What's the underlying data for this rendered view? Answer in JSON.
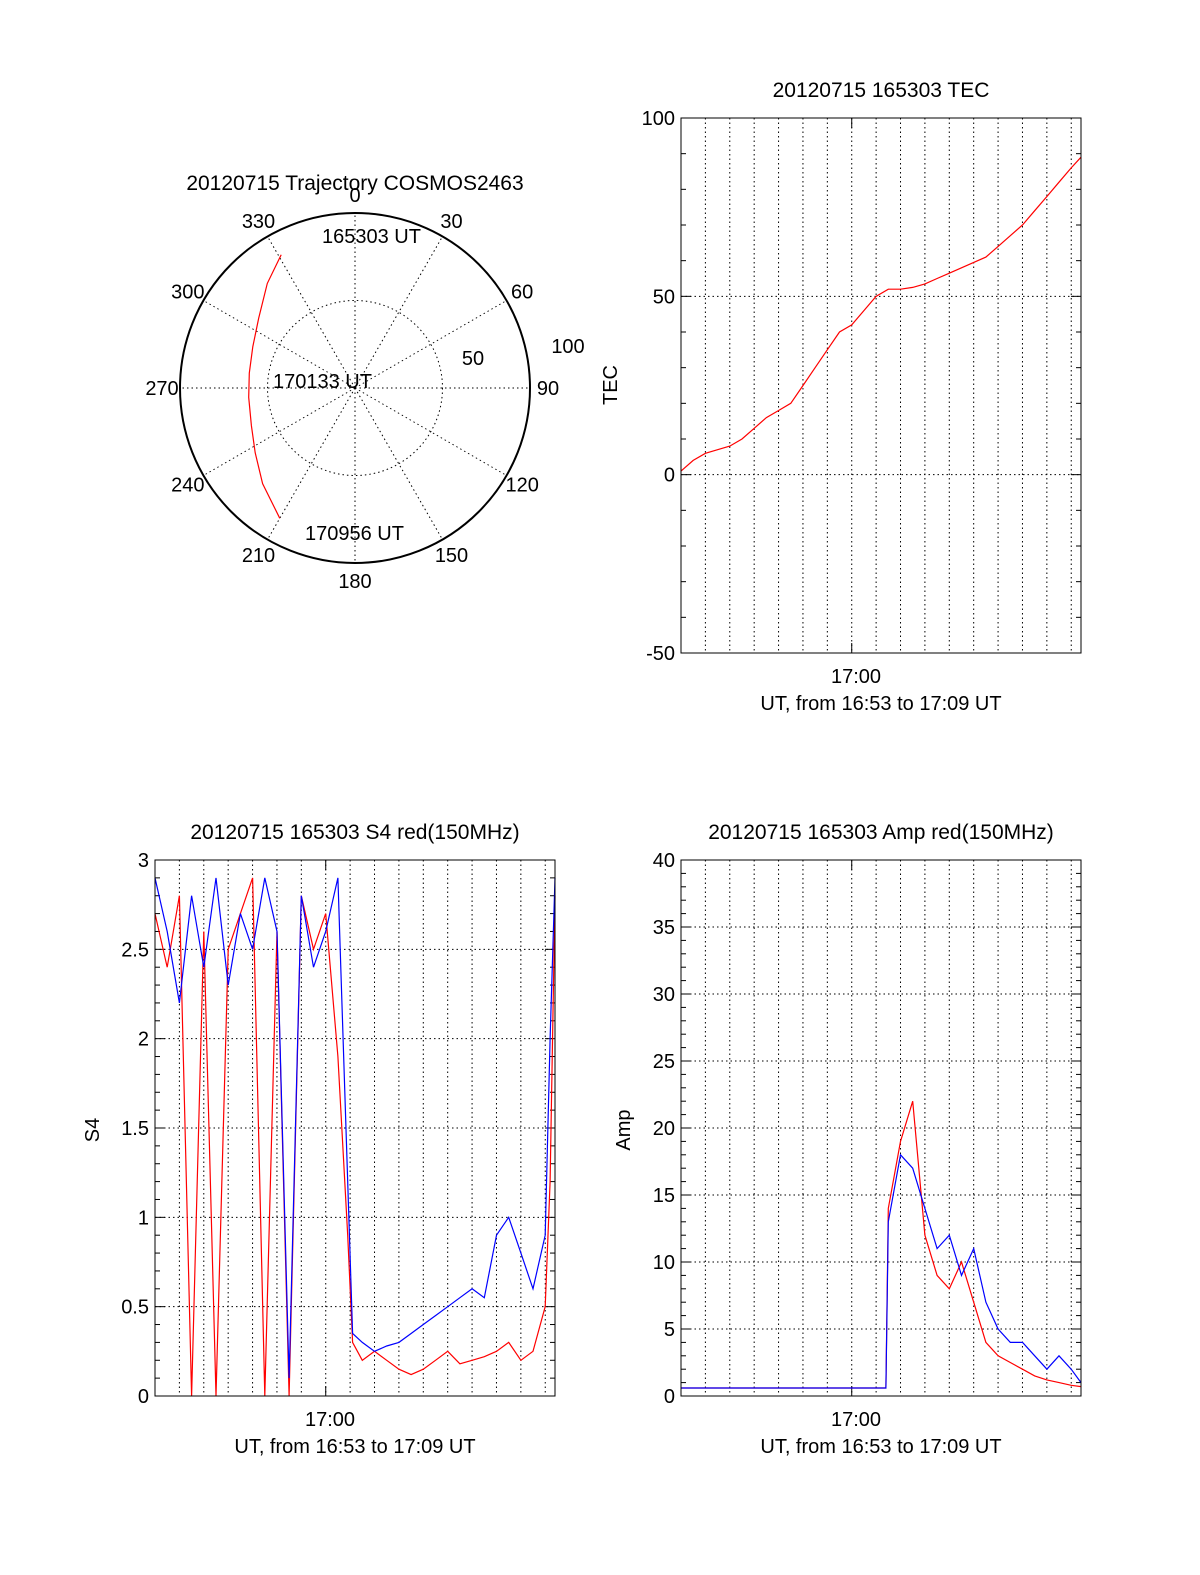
{
  "chart_data": [
    {
      "type": "polar",
      "title": "20120715 Trajectory COSMOS2463",
      "angle_labels": [
        "0",
        "30",
        "60",
        "90",
        "120",
        "150",
        "180",
        "210",
        "240",
        "270",
        "300",
        "330"
      ],
      "radius_labels": [
        "50",
        "100"
      ],
      "rlim": [
        0,
        100
      ],
      "annotations": [
        "165303 UT",
        "170133 UT",
        "170956 UT"
      ],
      "trajectory_color": "#ff0000",
      "trajectory": [
        {
          "az": 331,
          "r": 87
        },
        {
          "az": 320,
          "r": 78
        },
        {
          "az": 306,
          "r": 68
        },
        {
          "az": 292,
          "r": 63
        },
        {
          "az": 278,
          "r": 61
        },
        {
          "az": 265,
          "r": 61
        },
        {
          "az": 250,
          "r": 63
        },
        {
          "az": 237,
          "r": 68
        },
        {
          "az": 224,
          "r": 76
        },
        {
          "az": 210,
          "r": 86
        }
      ]
    },
    {
      "type": "line",
      "title": "20120715 165303 TEC",
      "ylabel": "TEC",
      "xlabel": "UT, from 16:53 to 17:09 UT",
      "xtick_label": "17:00",
      "xlim": [
        0,
        16.4
      ],
      "ylim": [
        -50,
        100
      ],
      "yticks": [
        "-50",
        "0",
        "50",
        "100"
      ],
      "major_ytick_values": [
        -50,
        0,
        50,
        100
      ],
      "grid": true,
      "series": [
        {
          "color": "#ff0000",
          "x": [
            0,
            0.5,
            1.0,
            1.5,
            2.0,
            2.5,
            3.0,
            3.5,
            4.0,
            4.5,
            5.0,
            5.5,
            6.0,
            6.5,
            7.0,
            7.5,
            8.0,
            8.5,
            9.0,
            9.5,
            10.0,
            10.5,
            11.0,
            11.5,
            12.0,
            12.5,
            13.0,
            13.5,
            14.0,
            14.5,
            15.0,
            15.5,
            16.0,
            16.4
          ],
          "y": [
            1,
            4,
            6,
            7,
            8,
            10,
            13,
            16,
            18,
            20,
            25,
            30,
            35,
            40,
            42,
            46,
            50,
            52,
            52,
            52.5,
            53.5,
            55,
            56.5,
            58,
            59.5,
            61,
            64,
            67,
            70,
            74,
            78,
            82,
            86,
            89
          ]
        }
      ]
    },
    {
      "type": "line",
      "title": "20120715 165303 S4 red(150MHz)",
      "ylabel": "S4",
      "xlabel": "UT, from 16:53 to 17:09 UT",
      "xtick_label": "17:00",
      "xlim": [
        0,
        16.4
      ],
      "ylim": [
        0,
        3
      ],
      "yticks": [
        "0",
        "0.5",
        "1",
        "1.5",
        "2",
        "2.5",
        "3"
      ],
      "major_ytick_values": [
        0,
        0.5,
        1,
        1.5,
        2,
        2.5,
        3
      ],
      "grid": true,
      "series": [
        {
          "color": "#ff0000",
          "x": [
            0,
            0.5,
            1.0,
            1.5,
            2.0,
            2.5,
            3.0,
            3.5,
            4.0,
            4.5,
            5.0,
            5.5,
            6.0,
            6.5,
            7.0,
            7.5,
            7.9,
            8.1,
            8.5,
            9.0,
            9.5,
            10.0,
            10.5,
            11.0,
            11.5,
            12.0,
            12.5,
            13.0,
            13.5,
            14.0,
            14.5,
            15.0,
            15.5,
            16.0,
            16.2,
            16.4
          ],
          "y": [
            2.7,
            2.4,
            2.8,
            0,
            2.6,
            0,
            2.5,
            2.7,
            2.9,
            0,
            2.6,
            0,
            2.8,
            2.5,
            2.7,
            1.9,
            0.9,
            0.3,
            0.2,
            0.25,
            0.2,
            0.15,
            0.12,
            0.15,
            0.2,
            0.25,
            0.18,
            0.2,
            0.22,
            0.25,
            0.3,
            0.2,
            0.25,
            0.5,
            1.2,
            2.8
          ]
        },
        {
          "color": "#0000ff",
          "x": [
            0,
            0.5,
            1.0,
            1.5,
            2.0,
            2.5,
            3.0,
            3.5,
            4.0,
            4.5,
            5.0,
            5.5,
            6.0,
            6.5,
            7.0,
            7.5,
            8.1,
            8.5,
            9.0,
            9.5,
            10.0,
            10.5,
            11.0,
            11.5,
            12.0,
            12.5,
            13.0,
            13.5,
            14.0,
            14.5,
            15.0,
            15.5,
            16.0,
            16.2,
            16.4
          ],
          "y": [
            2.9,
            2.6,
            2.2,
            2.8,
            2.4,
            2.9,
            2.3,
            2.7,
            2.5,
            2.9,
            2.6,
            0.1,
            2.8,
            2.4,
            2.6,
            2.9,
            0.35,
            0.3,
            0.25,
            0.28,
            0.3,
            0.35,
            0.4,
            0.45,
            0.5,
            0.55,
            0.6,
            0.55,
            0.9,
            1.0,
            0.8,
            0.6,
            0.9,
            2.0,
            2.9
          ]
        }
      ]
    },
    {
      "type": "line",
      "title": "20120715 165303 Amp red(150MHz)",
      "ylabel": "Amp",
      "xlabel": "UT, from 16:53 to 17:09 UT",
      "xtick_label": "17:00",
      "xlim": [
        0,
        16.4
      ],
      "ylim": [
        0,
        40
      ],
      "yticks": [
        "0",
        "5",
        "10",
        "15",
        "20",
        "25",
        "30",
        "35",
        "40"
      ],
      "major_ytick_values": [
        0,
        5,
        10,
        15,
        20,
        25,
        30,
        35,
        40
      ],
      "grid": true,
      "series": [
        {
          "color": "#ff0000",
          "x": [
            0,
            8.4,
            8.5,
            9.0,
            9.5,
            10.0,
            10.5,
            11.0,
            11.5,
            12.0,
            12.5,
            13.0,
            13.5,
            14.0,
            14.5,
            15.0,
            15.5,
            16.0,
            16.4
          ],
          "y": [
            0.6,
            0.6,
            14,
            19,
            22,
            12,
            9,
            8,
            10,
            7,
            4,
            3,
            2.5,
            2,
            1.5,
            1.2,
            1,
            0.8,
            0.7
          ]
        },
        {
          "color": "#0000ff",
          "x": [
            0,
            2.0,
            4.0,
            6.0,
            8.4,
            8.5,
            9.0,
            9.5,
            10.0,
            10.5,
            11.0,
            11.5,
            12.0,
            12.5,
            13.0,
            13.5,
            14.0,
            14.5,
            15.0,
            15.5,
            16.0,
            16.4
          ],
          "y": [
            0.6,
            0.6,
            0.6,
            0.6,
            0.6,
            13,
            18,
            17,
            14,
            11,
            12,
            9,
            11,
            7,
            5,
            4,
            4,
            3,
            2,
            3,
            2,
            1
          ]
        }
      ]
    }
  ]
}
